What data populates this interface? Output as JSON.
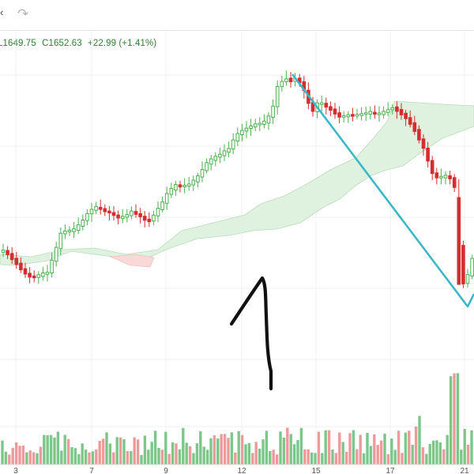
{
  "toolbar": {
    "ellipsis": "‹",
    "redo_icon": "redo-icon",
    "redo_glyph": "↷"
  },
  "legend": {
    "low": "L1649.75",
    "close": "C1652.63",
    "change": "+22.99 (+1.41%)",
    "color": "#2e7d32"
  },
  "colors": {
    "up": "#4caf50",
    "down": "#d32f2f",
    "vol_up": "#7cc68a",
    "vol_down": "#ef9a9a",
    "cloud_green": "#dff1df",
    "cloud_red": "#f9d8d8",
    "trendline": "#3bb8c8",
    "grid": "#efefef",
    "annotation": "#111111"
  },
  "chart_data": {
    "type": "candlestick",
    "x_tick_labels": [
      "3",
      "7",
      "9",
      "12",
      "15",
      "17",
      "21"
    ],
    "overlays": [
      "ichimoku-cloud",
      "trendline",
      "handwritten-annotation"
    ],
    "grid": true,
    "volume_panel": true
  }
}
